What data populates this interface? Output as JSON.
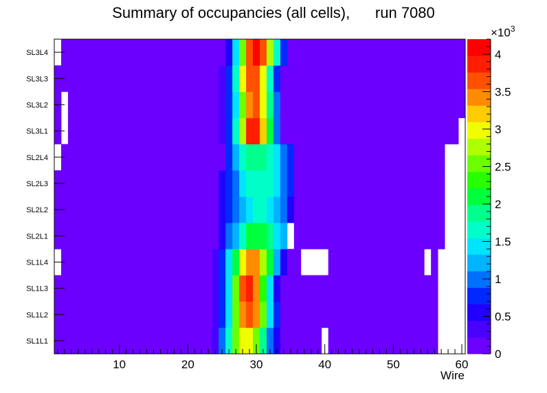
{
  "chart_data": {
    "type": "heatmap",
    "title": "Summary of occupancies (all cells),      run 7080",
    "xlabel": "Wire",
    "ylabel": "",
    "x_range": [
      0.5,
      60.5
    ],
    "x_ticks": [
      10,
      20,
      30,
      40,
      50,
      60
    ],
    "layers": [
      "SL1L1",
      "SL1L2",
      "SL1L3",
      "SL1L4",
      "SL2L1",
      "SL2L2",
      "SL2L3",
      "SL2L4",
      "SL3L1",
      "SL3L2",
      "SL3L3",
      "SL3L4"
    ],
    "z_range": [
      0,
      4200
    ],
    "z_multiplier_label": "×10",
    "z_multiplier_exponent": "3",
    "z_tick_values": [
      0,
      500,
      1000,
      1500,
      2000,
      2500,
      3000,
      3500,
      4000
    ],
    "z_tick_labels": [
      "0",
      "0.5",
      "1",
      "1.5",
      "2",
      "2.5",
      "3",
      "3.5",
      "4"
    ],
    "profiles": [
      {
        "layer": "SL1L1",
        "center": 28.6,
        "width": 2.3,
        "peak": 3100,
        "span": [
          23,
          34
        ],
        "empty_wires": [
          40,
          57,
          58,
          59,
          60
        ]
      },
      {
        "layer": "SL1L2",
        "center": 29.0,
        "width": 2.2,
        "peak": 3700,
        "span": [
          24,
          33
        ],
        "empty_wires": [
          57,
          58,
          59,
          60
        ]
      },
      {
        "layer": "SL1L3",
        "center": 28.9,
        "width": 2.1,
        "peak": 3950,
        "span": [
          23,
          33
        ],
        "empty_wires": [
          57,
          58,
          59,
          60
        ]
      },
      {
        "layer": "SL1L4",
        "center": 29.4,
        "width": 2.5,
        "peak": 3500,
        "span": [
          24,
          34
        ],
        "empty_wires": [
          1,
          37,
          38,
          39,
          40,
          55,
          57,
          58,
          59,
          60
        ]
      },
      {
        "layer": "SL2L1",
        "center": 30.3,
        "width": 3.3,
        "peak": 2150,
        "span": [
          25,
          35
        ],
        "empty_wires": [
          35,
          58,
          59,
          60
        ]
      },
      {
        "layer": "SL2L2",
        "center": 30.3,
        "width": 3.4,
        "peak": 1650,
        "span": [
          25,
          35
        ],
        "empty_wires": [
          58,
          59,
          60
        ]
      },
      {
        "layer": "SL2L3",
        "center": 30.5,
        "width": 3.5,
        "peak": 1750,
        "span": [
          25,
          35
        ],
        "empty_wires": [
          58,
          59,
          60
        ]
      },
      {
        "layer": "SL2L4",
        "center": 30.3,
        "width": 3.4,
        "peak": 1950,
        "span": [
          26,
          35
        ],
        "empty_wires": [
          1,
          58,
          59,
          60
        ]
      },
      {
        "layer": "SL3L1",
        "center": 29.7,
        "width": 2.0,
        "peak": 4000,
        "span": [
          24,
          33
        ],
        "empty_wires": [
          2,
          60
        ]
      },
      {
        "layer": "SL3L2",
        "center": 29.7,
        "width": 2.0,
        "peak": 3750,
        "span": [
          24,
          33
        ],
        "empty_wires": [
          2
        ]
      },
      {
        "layer": "SL3L3",
        "center": 29.5,
        "width": 2.0,
        "peak": 3850,
        "span": [
          25,
          33
        ],
        "empty_wires": []
      },
      {
        "layer": "SL3L4",
        "center": 30.1,
        "width": 2.1,
        "peak": 4100,
        "span": [
          24,
          34
        ],
        "empty_wires": [
          1
        ]
      }
    ],
    "baseline": 0,
    "legend_position": "right"
  }
}
